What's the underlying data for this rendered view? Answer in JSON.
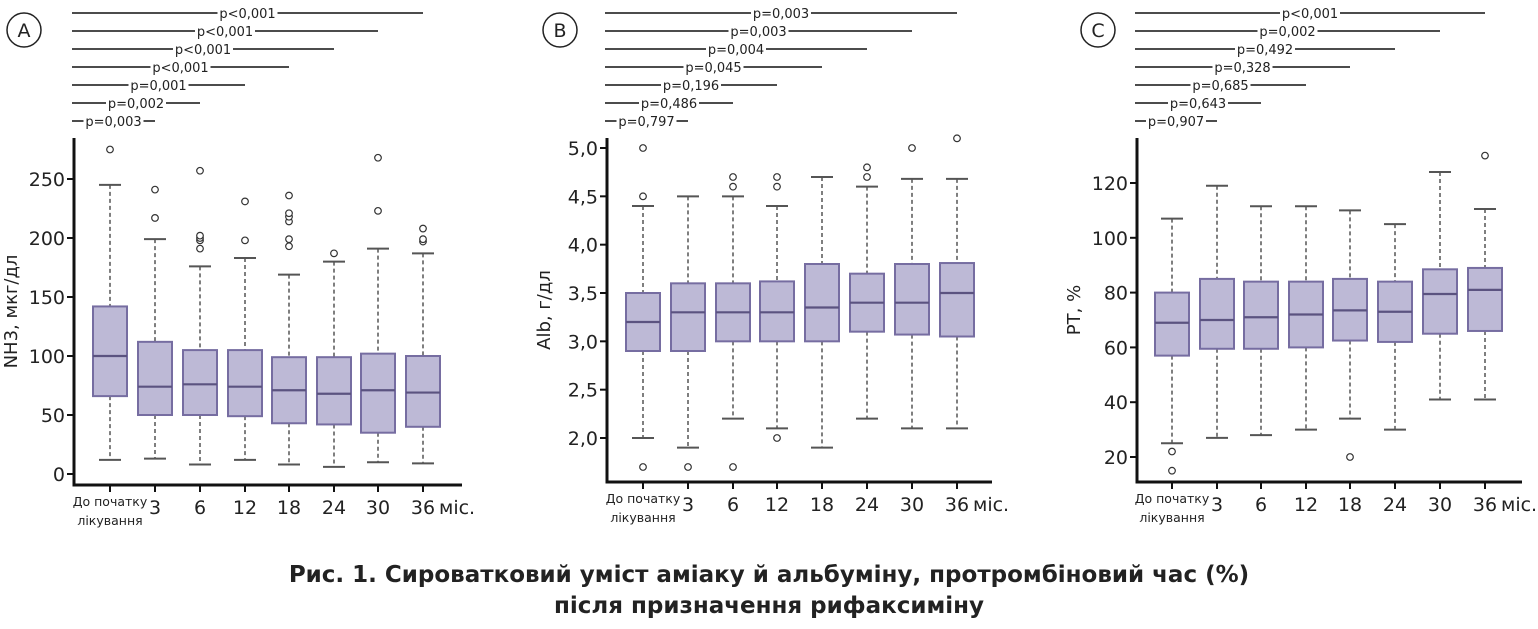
{
  "caption": {
    "line1": "Рис. 1. Сироватковий уміст аміаку й альбуміну, протромбіновий час (%)",
    "line2": "після призначення рифаксиміну"
  },
  "chart_data": [
    {
      "type": "box",
      "panel_label": "A",
      "ylabel": "NH3, мкг/дл",
      "categories": [
        "До початку лікування",
        "3",
        "6",
        "12",
        "18",
        "24",
        "30",
        "36 міс."
      ],
      "ylim": [
        0,
        280
      ],
      "yticks": [
        0,
        50,
        100,
        150,
        200,
        250
      ],
      "ytick_labels": [
        "0",
        "50",
        "100",
        "150",
        "200",
        "250"
      ],
      "boxes": [
        {
          "whisker_low": 12,
          "q1": 66,
          "median": 100,
          "q3": 142,
          "whisker_high": 245,
          "outliers": [
            275
          ]
        },
        {
          "whisker_low": 13,
          "q1": 50,
          "median": 74,
          "q3": 112,
          "whisker_high": 199,
          "outliers": [
            217,
            241
          ]
        },
        {
          "whisker_low": 8,
          "q1": 50,
          "median": 76,
          "q3": 105,
          "whisker_high": 176,
          "outliers": [
            191,
            198,
            200,
            202,
            257
          ]
        },
        {
          "whisker_low": 12,
          "q1": 49,
          "median": 74,
          "q3": 105,
          "whisker_high": 183,
          "outliers": [
            198,
            231
          ]
        },
        {
          "whisker_low": 8,
          "q1": 43,
          "median": 71,
          "q3": 99,
          "whisker_high": 169,
          "outliers": [
            193,
            199,
            214,
            218,
            221,
            236
          ]
        },
        {
          "whisker_low": 6,
          "q1": 42,
          "median": 68,
          "q3": 99,
          "whisker_high": 180,
          "outliers": [
            187
          ]
        },
        {
          "whisker_low": 10,
          "q1": 35,
          "median": 71,
          "q3": 102,
          "whisker_high": 191,
          "outliers": [
            223,
            268
          ]
        },
        {
          "whisker_low": 9,
          "q1": 40,
          "median": 69,
          "q3": 100,
          "whisker_high": 187,
          "outliers": [
            197,
            199,
            208
          ]
        }
      ],
      "comparisons": [
        "p<0,001",
        "p<0,001",
        "p<0,001",
        "p<0,001",
        "p=0,001",
        "p=0,002",
        "p=0,003"
      ]
    },
    {
      "type": "box",
      "panel_label": "B",
      "ylabel": "Alb, г/дл",
      "categories": [
        "До початку лікування",
        "3",
        "6",
        "12",
        "18",
        "24",
        "30",
        "36 міс."
      ],
      "ylim": [
        1.6,
        5.1
      ],
      "yticks": [
        2.0,
        2.5,
        3.0,
        3.5,
        4.0,
        4.5,
        5.0
      ],
      "ytick_labels": [
        "2,0",
        "2,5",
        "3,0",
        "3,5",
        "4,0",
        "4,5",
        "5,0"
      ],
      "boxes": [
        {
          "whisker_low": 2.0,
          "q1": 2.9,
          "median": 3.2,
          "q3": 3.5,
          "whisker_high": 4.4,
          "outliers": [
            1.7,
            4.5,
            5.0
          ]
        },
        {
          "whisker_low": 1.9,
          "q1": 2.9,
          "median": 3.3,
          "q3": 3.6,
          "whisker_high": 4.5,
          "outliers": [
            1.7
          ]
        },
        {
          "whisker_low": 2.2,
          "q1": 3.0,
          "median": 3.3,
          "q3": 3.6,
          "whisker_high": 4.5,
          "outliers": [
            1.7,
            4.6,
            4.7
          ]
        },
        {
          "whisker_low": 2.1,
          "q1": 3.0,
          "median": 3.3,
          "q3": 3.62,
          "whisker_high": 4.4,
          "outliers": [
            2.0,
            4.6,
            4.7
          ]
        },
        {
          "whisker_low": 1.9,
          "q1": 3.0,
          "median": 3.35,
          "q3": 3.8,
          "whisker_high": 4.7,
          "outliers": []
        },
        {
          "whisker_low": 2.2,
          "q1": 3.1,
          "median": 3.4,
          "q3": 3.7,
          "whisker_high": 4.6,
          "outliers": [
            4.7,
            4.8
          ]
        },
        {
          "whisker_low": 2.1,
          "q1": 3.07,
          "median": 3.4,
          "q3": 3.8,
          "whisker_high": 4.68,
          "outliers": [
            5.0
          ]
        },
        {
          "whisker_low": 2.1,
          "q1": 3.05,
          "median": 3.5,
          "q3": 3.81,
          "whisker_high": 4.68,
          "outliers": [
            5.1
          ]
        }
      ],
      "comparisons": [
        "p=0,003",
        "p=0,003",
        "p=0,004",
        "p=0,045",
        "p=0,196",
        "p=0,486",
        "p=0,797"
      ]
    },
    {
      "type": "box",
      "panel_label": "C",
      "ylabel": "PT, %",
      "categories": [
        "До початку лікування",
        "3",
        "6",
        "12",
        "18",
        "24",
        "30",
        "36 міс."
      ],
      "ylim": [
        10,
        135
      ],
      "yticks": [
        20,
        40,
        60,
        80,
        100,
        120
      ],
      "ytick_labels": [
        "20",
        "40",
        "60",
        "80",
        "100",
        "120"
      ],
      "boxes": [
        {
          "whisker_low": 25,
          "q1": 57,
          "median": 69,
          "q3": 80,
          "whisker_high": 107,
          "outliers": [
            15,
            22
          ]
        },
        {
          "whisker_low": 27,
          "q1": 59.5,
          "median": 70,
          "q3": 85,
          "whisker_high": 119,
          "outliers": []
        },
        {
          "whisker_low": 28,
          "q1": 59.5,
          "median": 71,
          "q3": 84,
          "whisker_high": 111.5,
          "outliers": []
        },
        {
          "whisker_low": 30,
          "q1": 60,
          "median": 72,
          "q3": 84,
          "whisker_high": 111.5,
          "outliers": []
        },
        {
          "whisker_low": 34,
          "q1": 62.5,
          "median": 73.5,
          "q3": 85,
          "whisker_high": 110,
          "outliers": [
            20
          ]
        },
        {
          "whisker_low": 30,
          "q1": 62,
          "median": 73,
          "q3": 84,
          "whisker_high": 105,
          "outliers": []
        },
        {
          "whisker_low": 41,
          "q1": 65,
          "median": 79.5,
          "q3": 88.5,
          "whisker_high": 124,
          "outliers": []
        },
        {
          "whisker_low": 41,
          "q1": 66,
          "median": 81,
          "q3": 89,
          "whisker_high": 110.5,
          "outliers": [
            130
          ]
        }
      ],
      "comparisons": [
        "p<0,001",
        "p=0,002",
        "p=0,492",
        "p=0,328",
        "p=0,685",
        "p=0,643",
        "p=0,907"
      ]
    }
  ],
  "colors": {
    "box_fill": "#bdb9d6",
    "box_stroke": "#766da1",
    "whisker": "#555555",
    "axis": "#111111"
  }
}
